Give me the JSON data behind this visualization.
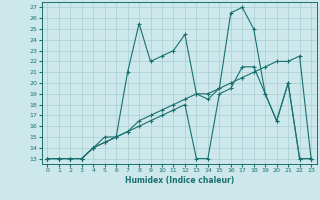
{
  "xlabel": "Humidex (Indice chaleur)",
  "xlim": [
    -0.5,
    23.5
  ],
  "ylim": [
    12.5,
    27.5
  ],
  "xticks": [
    0,
    1,
    2,
    3,
    4,
    5,
    6,
    7,
    8,
    9,
    10,
    11,
    12,
    13,
    14,
    15,
    16,
    17,
    18,
    19,
    20,
    21,
    22,
    23
  ],
  "yticks": [
    13,
    14,
    15,
    16,
    17,
    18,
    19,
    20,
    21,
    22,
    23,
    24,
    25,
    26,
    27
  ],
  "bg_color": "#cce8ea",
  "line_color": "#1a7070",
  "grid_color": "#aacfd4",
  "line1_x": [
    0,
    1,
    2,
    3,
    4,
    5,
    6,
    7,
    8,
    9,
    10,
    11,
    12,
    13,
    14,
    15,
    16,
    17,
    18,
    19,
    20,
    21,
    22,
    23
  ],
  "line1_y": [
    13,
    13,
    13,
    13,
    14,
    15,
    15,
    21,
    25.5,
    22,
    22.5,
    23,
    24.5,
    19,
    18.5,
    19.5,
    26.5,
    27,
    25,
    19,
    16.5,
    20,
    13,
    13
  ],
  "line2_x": [
    0,
    1,
    2,
    3,
    4,
    5,
    6,
    7,
    8,
    9,
    10,
    11,
    12,
    13,
    14,
    15,
    16,
    17,
    18,
    19,
    20,
    21,
    22,
    23
  ],
  "line2_y": [
    13,
    13,
    13,
    13,
    14,
    14.5,
    15,
    15.5,
    16,
    16.5,
    17,
    17.5,
    18,
    13,
    13,
    19,
    19.5,
    21.5,
    21.5,
    19,
    16.5,
    20,
    13,
    13
  ],
  "line3_x": [
    0,
    1,
    2,
    3,
    4,
    5,
    6,
    7,
    8,
    9,
    10,
    11,
    12,
    13,
    14,
    15,
    16,
    17,
    18,
    19,
    20,
    21,
    22,
    23
  ],
  "line3_y": [
    13,
    13,
    13,
    13,
    14,
    14.5,
    15,
    15.5,
    16.5,
    17,
    17.5,
    18,
    18.5,
    19,
    19,
    19.5,
    20,
    20.5,
    21,
    21.5,
    22,
    22,
    22.5,
    13
  ]
}
